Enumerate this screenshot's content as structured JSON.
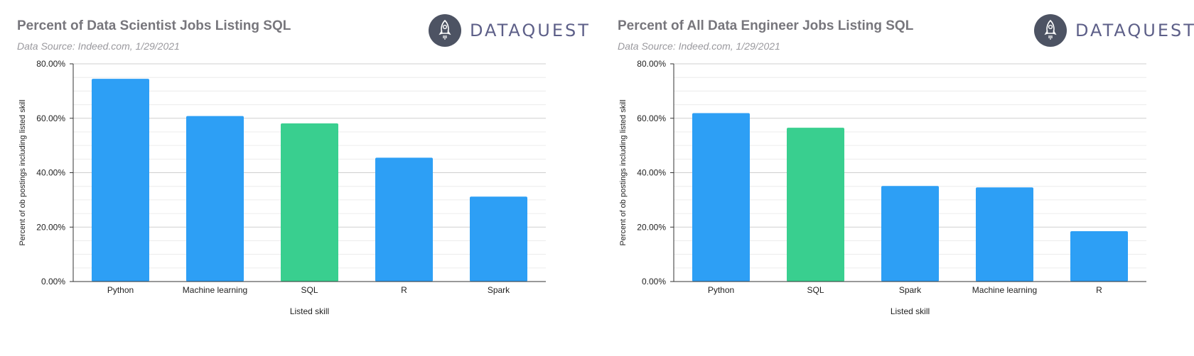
{
  "brand": {
    "name": "DATAQUEST",
    "logo_icon": "rocket-icon",
    "logo_color": "#4d5363",
    "text_color": "#5d5f88"
  },
  "colors": {
    "bar_default": "#2d9ff5",
    "bar_highlight": "#39cf8f",
    "title": "#77767c",
    "subtitle": "#9a999e"
  },
  "chart_data": [
    {
      "type": "bar",
      "title": "Percent of Data Scientist Jobs Listing SQL",
      "subtitle": "Data Source: Indeed.com, 1/29/2021",
      "xlabel": "Listed skill",
      "ylabel": "Percent of ob postings including listed skill",
      "categories": [
        "Python",
        "Machine learning",
        "SQL",
        "R",
        "Spark"
      ],
      "values": [
        74.5,
        60.8,
        58.1,
        45.5,
        31.2
      ],
      "highlight": "SQL",
      "ylim": [
        0,
        80
      ],
      "yticks": [
        "0.00%",
        "20.00%",
        "40.00%",
        "60.00%",
        "80.00%"
      ],
      "grid": true
    },
    {
      "type": "bar",
      "title": "Percent of All Data Engineer Jobs Listing SQL",
      "subtitle": "Data Source: Indeed.com, 1/29/2021",
      "xlabel": "Listed skill",
      "ylabel": "Percent of ob postings including listed skill",
      "categories": [
        "Python",
        "SQL",
        "Spark",
        "Machine learning",
        "R"
      ],
      "values": [
        61.9,
        56.5,
        35.1,
        34.6,
        18.5
      ],
      "highlight": "SQL",
      "ylim": [
        0,
        80
      ],
      "yticks": [
        "0.00%",
        "20.00%",
        "40.00%",
        "60.00%",
        "80.00%"
      ],
      "grid": true
    }
  ]
}
